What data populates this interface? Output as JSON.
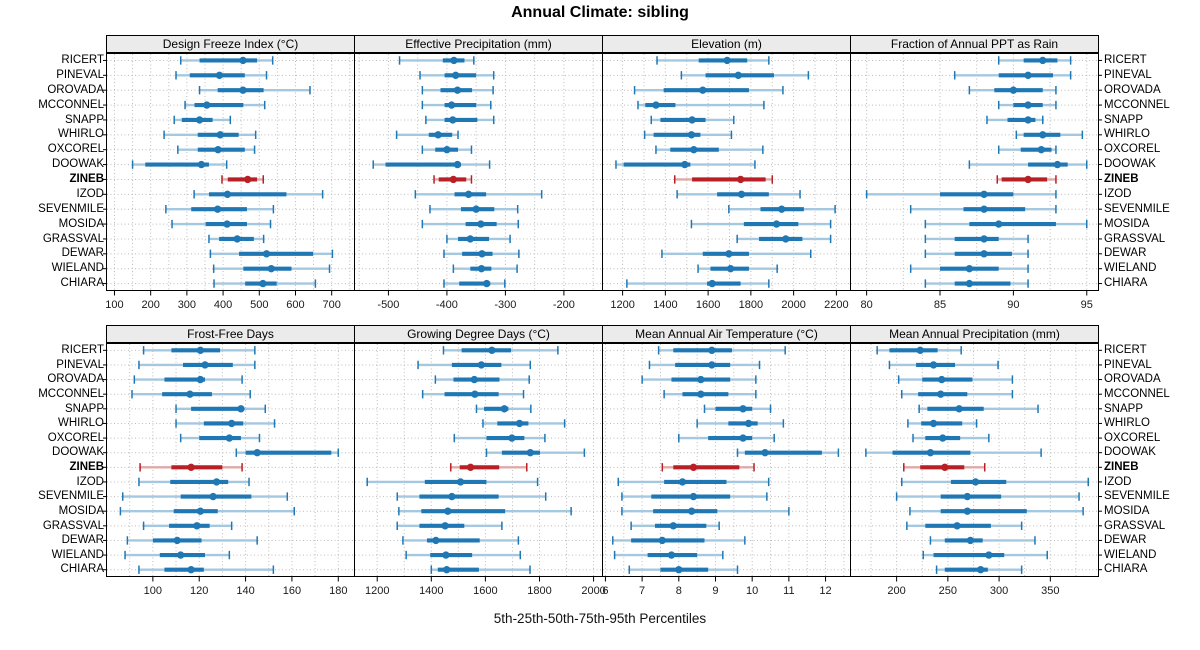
{
  "title": "Annual Climate: sibling",
  "caption": "5th-25th-50th-75th-95th Percentiles",
  "colors": {
    "normal": "#1f77b4",
    "normal_light": "#a5c8e1",
    "highlight": "#b82025",
    "highlight_light": "#e2a8a8",
    "strip_bg": "#ebebeb",
    "grid": "#bcbcbc",
    "border": "#000000"
  },
  "chart_data": {
    "type": "percentile-dotplot",
    "layout": {
      "rows": 2,
      "cols": 4,
      "legend_position": "none",
      "grid": "dotted"
    },
    "percentiles": [
      "5th",
      "25th",
      "50th",
      "75th",
      "95th"
    ],
    "sites": [
      "RICERT",
      "PINEVAL",
      "OROVADA",
      "MCCONNEL",
      "SNAPP",
      "WHIRLO",
      "OXCOREL",
      "DOOWAK",
      "ZINEB",
      "IZOD",
      "SEVENMILE",
      "MOSIDA",
      "GRASSVAL",
      "DEWAR",
      "WIELAND",
      "CHIARA"
    ],
    "highlight_site": "ZINEB",
    "panels": [
      {
        "title": "Design Freeze Index (°C)",
        "xlim": [
          78,
          763
        ],
        "ticks": [
          100,
          200,
          300,
          400,
          500,
          600,
          700
        ],
        "grid_step": 50,
        "values": [
          [
            283,
            335,
            455,
            494,
            537
          ],
          [
            270,
            308,
            390,
            460,
            520
          ],
          [
            335,
            385,
            455,
            512,
            640
          ],
          [
            295,
            321,
            355,
            456,
            515
          ],
          [
            265,
            286,
            335,
            371,
            420
          ],
          [
            237,
            330,
            392,
            443,
            490
          ],
          [
            275,
            330,
            386,
            460,
            487
          ],
          [
            150,
            185,
            340,
            361,
            410
          ],
          [
            397,
            413,
            468,
            494,
            511
          ],
          [
            320,
            361,
            412,
            575,
            675
          ],
          [
            242,
            312,
            385,
            466,
            539
          ],
          [
            259,
            352,
            411,
            466,
            531
          ],
          [
            361,
            389,
            439,
            485,
            512
          ],
          [
            365,
            444,
            520,
            649,
            702
          ],
          [
            374,
            456,
            533,
            589,
            694
          ],
          [
            375,
            461,
            510,
            548,
            655
          ]
        ]
      },
      {
        "title": "Effective Precipitation (mm)",
        "xlim": [
          -558,
          -134
        ],
        "ticks": [
          -500,
          -400,
          -300,
          -200
        ],
        "grid_step": 50,
        "values": [
          [
            -481,
            -407,
            -388,
            -370,
            -354
          ],
          [
            -446,
            -404,
            -385,
            -350,
            -320
          ],
          [
            -442,
            -411,
            -382,
            -357,
            -321
          ],
          [
            -442,
            -404,
            -392,
            -350,
            -325
          ],
          [
            -436,
            -404,
            -390,
            -348,
            -320
          ],
          [
            -486,
            -431,
            -415,
            -391,
            -381
          ],
          [
            -442,
            -420,
            -400,
            -381,
            -358
          ],
          [
            -526,
            -505,
            -382,
            -376,
            -327
          ],
          [
            -422,
            -414,
            -389,
            -367,
            -358
          ],
          [
            -454,
            -387,
            -363,
            -333,
            -238
          ],
          [
            -429,
            -376,
            -350,
            -319,
            -279
          ],
          [
            -442,
            -368,
            -342,
            -315,
            -278
          ],
          [
            -400,
            -381,
            -360,
            -328,
            -292
          ],
          [
            -405,
            -374,
            -340,
            -322,
            -277
          ],
          [
            -389,
            -360,
            -341,
            -324,
            -280
          ],
          [
            -405,
            -379,
            -332,
            -326,
            -301
          ]
        ]
      },
      {
        "title": "Elevation (m)",
        "xlim": [
          1106,
          2266
        ],
        "ticks": [
          1200,
          1400,
          1600,
          1800,
          2000,
          2200
        ],
        "grid_step": 100,
        "values": [
          [
            1361,
            1556,
            1689,
            1783,
            1884
          ],
          [
            1475,
            1588,
            1741,
            1908,
            2069
          ],
          [
            1256,
            1392,
            1575,
            1791,
            1950
          ],
          [
            1272,
            1306,
            1356,
            1447,
            1861
          ],
          [
            1334,
            1377,
            1525,
            1588,
            1720
          ],
          [
            1303,
            1345,
            1522,
            1564,
            1709
          ],
          [
            1356,
            1423,
            1533,
            1650,
            1856
          ],
          [
            1169,
            1205,
            1491,
            1517,
            1819
          ],
          [
            1444,
            1525,
            1752,
            1869,
            1900
          ],
          [
            1455,
            1642,
            1756,
            1884,
            2030
          ],
          [
            1697,
            1845,
            1944,
            2048,
            2194
          ],
          [
            1522,
            1767,
            1920,
            2022,
            2173
          ],
          [
            1736,
            1838,
            1963,
            2041,
            2173
          ],
          [
            1384,
            1575,
            1697,
            1791,
            2080
          ],
          [
            1553,
            1611,
            1705,
            1791,
            1923
          ],
          [
            1220,
            1595,
            1619,
            1752,
            1884
          ]
        ]
      },
      {
        "title": "Fraction of Annual PPT as Rain",
        "xlim": [
          78.9,
          95.8
        ],
        "ticks": [
          80,
          85,
          90,
          95
        ],
        "grid_step": 2.5,
        "values": [
          [
            89,
            90.7,
            92,
            93,
            93.9
          ],
          [
            86,
            89,
            91,
            92.7,
            93.9
          ],
          [
            87,
            88.7,
            90,
            92,
            92.9
          ],
          [
            89,
            90,
            91,
            92,
            92.9
          ],
          [
            88.2,
            89.6,
            91,
            91.5,
            92
          ],
          [
            90.2,
            90.7,
            92,
            93.2,
            94.7
          ],
          [
            89,
            90.5,
            91.9,
            92.6,
            92.9
          ],
          [
            87,
            91,
            93,
            93.7,
            95
          ],
          [
            88.9,
            89.2,
            91,
            92.3,
            92.9
          ],
          [
            80,
            85,
            88,
            90,
            92.9
          ],
          [
            83,
            86.6,
            88,
            90.8,
            92.9
          ],
          [
            84,
            87,
            89,
            92.9,
            95
          ],
          [
            84,
            86,
            88,
            89,
            91
          ],
          [
            84,
            86,
            88,
            89.9,
            91
          ],
          [
            83,
            85,
            87,
            89,
            91
          ],
          [
            84,
            86,
            87,
            89.8,
            91
          ]
        ]
      },
      {
        "title": "Frost-Free Days",
        "xlim": [
          80,
          187
        ],
        "ticks": [
          100,
          120,
          140,
          160,
          180
        ],
        "grid_step": 10,
        "values": [
          [
            96,
            108,
            120.5,
            129,
            144
          ],
          [
            94,
            113,
            122.5,
            134.5,
            144
          ],
          [
            92,
            105,
            120.5,
            122.5,
            138.5
          ],
          [
            91,
            104,
            116,
            125.5,
            142
          ],
          [
            110,
            116.5,
            138,
            139,
            148.5
          ],
          [
            110,
            122,
            134,
            139,
            152.5
          ],
          [
            112,
            120,
            133,
            138,
            146
          ],
          [
            136,
            140,
            145,
            177,
            180
          ],
          [
            94.5,
            108,
            116.5,
            130,
            138.5
          ],
          [
            94,
            107.5,
            127.5,
            132.5,
            141.5
          ],
          [
            87,
            112,
            126,
            142.5,
            158
          ],
          [
            86,
            109,
            120.5,
            128,
            161
          ],
          [
            96,
            107,
            119,
            124.5,
            134
          ],
          [
            89,
            100,
            110.5,
            121,
            145
          ],
          [
            88,
            103,
            112,
            122.5,
            133
          ],
          [
            94,
            105,
            116.5,
            122,
            152
          ]
        ]
      },
      {
        "title": "Growing Degree Days (°C)",
        "xlim": [
          1116,
          2033
        ],
        "ticks": [
          1200,
          1400,
          1600,
          1800,
          2000
        ],
        "grid_step": 100,
        "values": [
          [
            1445,
            1512,
            1624,
            1695,
            1868
          ],
          [
            1351,
            1476,
            1585,
            1659,
            1766
          ],
          [
            1415,
            1482,
            1559,
            1652,
            1762
          ],
          [
            1368,
            1449,
            1561,
            1649,
            1741
          ],
          [
            1567,
            1595,
            1670,
            1685,
            1768
          ],
          [
            1591,
            1644,
            1726,
            1759,
            1893
          ],
          [
            1485,
            1604,
            1698,
            1744,
            1820
          ],
          [
            1604,
            1661,
            1766,
            1802,
            1966
          ],
          [
            1472,
            1505,
            1545,
            1651,
            1753
          ],
          [
            1163,
            1376,
            1508,
            1604,
            1793
          ],
          [
            1274,
            1356,
            1476,
            1649,
            1823
          ],
          [
            1280,
            1363,
            1461,
            1673,
            1917
          ],
          [
            1274,
            1356,
            1451,
            1522,
            1661
          ],
          [
            1295,
            1384,
            1417,
            1579,
            1722
          ],
          [
            1307,
            1396,
            1454,
            1551,
            1729
          ],
          [
            1400,
            1424,
            1457,
            1576,
            1765
          ]
        ]
      },
      {
        "title": "Mean Annual Air Temperature (°C)",
        "xlim": [
          5.92,
          12.68
        ],
        "ticks": [
          6,
          7,
          8,
          9,
          10,
          11,
          12
        ],
        "grid_step": 0.5,
        "values": [
          [
            7.45,
            7.85,
            8.9,
            9.45,
            10.9
          ],
          [
            7.2,
            7.9,
            8.9,
            9.4,
            10.2
          ],
          [
            7.0,
            7.8,
            8.6,
            9.4,
            10.1
          ],
          [
            7.6,
            8.1,
            8.6,
            9.35,
            10.1
          ],
          [
            8.7,
            9.0,
            9.75,
            10.0,
            10.5
          ],
          [
            8.5,
            9.35,
            9.9,
            10.15,
            10.85
          ],
          [
            8.0,
            8.8,
            9.75,
            10.0,
            10.6
          ],
          [
            9.6,
            9.8,
            10.35,
            11.9,
            12.35
          ],
          [
            7.55,
            7.85,
            8.4,
            9.65,
            10.05
          ],
          [
            6.35,
            7.6,
            8.1,
            9.3,
            10.45
          ],
          [
            6.45,
            7.25,
            8.4,
            9.4,
            10.4
          ],
          [
            6.45,
            7.3,
            8.35,
            9.05,
            11.0
          ],
          [
            6.7,
            7.35,
            7.85,
            8.75,
            9.1
          ],
          [
            6.2,
            6.7,
            7.55,
            8.7,
            9.8
          ],
          [
            6.25,
            7.15,
            7.8,
            8.5,
            9.2
          ],
          [
            6.65,
            7.5,
            8.0,
            8.8,
            9.6
          ]
        ]
      },
      {
        "title": "Mean Annual Precipitation (mm)",
        "xlim": [
          155,
          397
        ],
        "ticks": [
          200,
          250,
          300,
          350
        ],
        "grid_step": 25,
        "values": [
          [
            181,
            193,
            223,
            240,
            263
          ],
          [
            193,
            219,
            236,
            257,
            299
          ],
          [
            202,
            225,
            244,
            274,
            313
          ],
          [
            205,
            221,
            243,
            269,
            313
          ],
          [
            222,
            230,
            261,
            285,
            338
          ],
          [
            211,
            224,
            236,
            264,
            278
          ],
          [
            216,
            228,
            245,
            262,
            290
          ],
          [
            170,
            196,
            233,
            272,
            341
          ],
          [
            207,
            223,
            247,
            266,
            286
          ],
          [
            205,
            253,
            277,
            307,
            387
          ],
          [
            200,
            243,
            269,
            302,
            378
          ],
          [
            213,
            243,
            269,
            327,
            382
          ],
          [
            210,
            228,
            259,
            292,
            322
          ],
          [
            233,
            247,
            272,
            284,
            335
          ],
          [
            226,
            236,
            290,
            305,
            347
          ],
          [
            239,
            247,
            282,
            289,
            322
          ]
        ]
      }
    ]
  }
}
